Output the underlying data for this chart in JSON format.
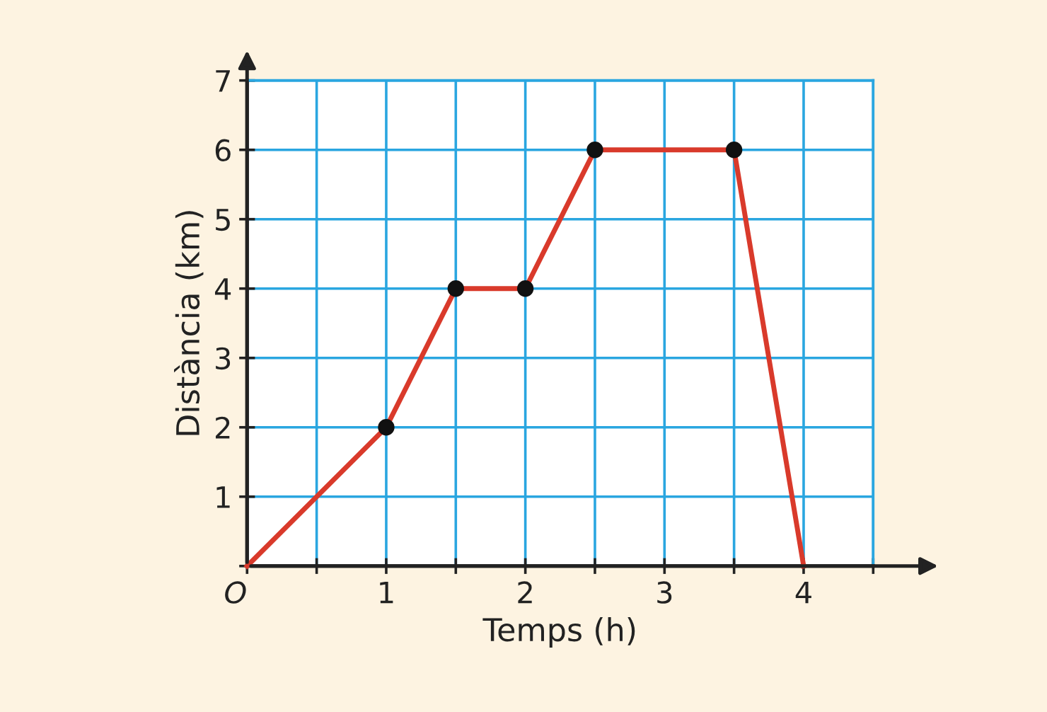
{
  "chart_data": {
    "type": "line",
    "xlabel": "Temps (h)",
    "ylabel": "Distància (km)",
    "series": [
      {
        "color": "#d93a2b",
        "x": [
          0,
          1,
          1.5,
          2,
          2.5,
          3.5,
          4
        ],
        "values": [
          0,
          2,
          4,
          4,
          6,
          6,
          0
        ],
        "marker": "none"
      },
      {
        "type": "scatter",
        "color": "#111111",
        "x": [
          1,
          1.5,
          2,
          2.5,
          3.5
        ],
        "values": [
          2,
          4,
          4,
          6,
          6
        ],
        "marker": "circle"
      }
    ],
    "xlim": [
      0,
      4.5
    ],
    "ylim": [
      0,
      7
    ],
    "xticks": [
      {
        "value": 0,
        "label": "O"
      },
      {
        "value": 0.5,
        "label": null
      },
      1,
      {
        "value": 1.5,
        "label": null
      },
      2,
      {
        "value": 2.5,
        "label": null
      },
      3,
      {
        "value": 3.5,
        "label": null
      },
      4,
      {
        "value": 4.5,
        "label": null
      }
    ],
    "yticks": [
      {
        "value": 0,
        "label": null
      },
      1,
      2,
      3,
      4,
      5,
      6,
      7
    ],
    "grid": true,
    "legend": false
  }
}
